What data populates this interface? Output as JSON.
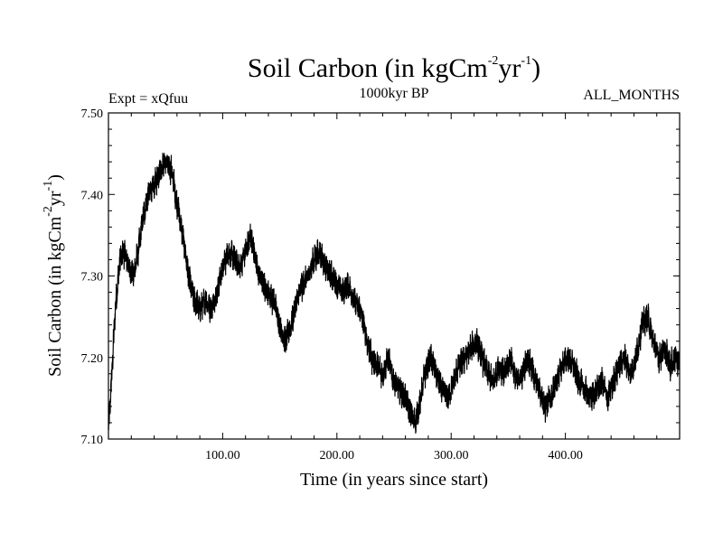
{
  "chart_data": {
    "type": "line",
    "title": {
      "prefix": "Soil Carbon (in kgCm",
      "sup1": "-2",
      "mid": "yr",
      "sup2": "-1",
      "suffix": ")"
    },
    "subtitle_left": "Expt = xQfuu",
    "subtitle_center": "1000kyr BP",
    "subtitle_right": "ALL_MONTHS",
    "xlabel": "Time (in years since start)",
    "ylabel": {
      "prefix": "Soil Carbon (in kgCm",
      "sup1": "-2",
      "mid": "yr",
      "sup2": "-1",
      "suffix": ")"
    },
    "xlim": [
      0,
      500
    ],
    "ylim": [
      7.1,
      7.5
    ],
    "x_ticks": [
      100,
      200,
      300,
      400
    ],
    "x_tick_labels": [
      "100.00",
      "200.00",
      "300.00",
      "400.00"
    ],
    "y_ticks": [
      7.1,
      7.2,
      7.3,
      7.4,
      7.5
    ],
    "y_tick_labels": [
      "7.10",
      "7.20",
      "7.30",
      "7.40",
      "7.50"
    ],
    "series": [
      {
        "name": "Soil Carbon",
        "color": "#000000",
        "x": [
          0,
          3,
          6,
          10,
          14,
          18,
          22,
          26,
          30,
          35,
          40,
          45,
          50,
          55,
          60,
          65,
          70,
          75,
          80,
          85,
          90,
          95,
          100,
          105,
          110,
          115,
          120,
          125,
          130,
          135,
          140,
          145,
          150,
          155,
          160,
          165,
          170,
          175,
          180,
          185,
          190,
          195,
          200,
          205,
          210,
          215,
          220,
          225,
          230,
          235,
          240,
          245,
          250,
          255,
          260,
          265,
          268,
          272,
          277,
          282,
          287,
          292,
          297,
          302,
          307,
          312,
          317,
          322,
          327,
          332,
          337,
          342,
          347,
          352,
          357,
          362,
          367,
          372,
          377,
          382,
          387,
          392,
          397,
          402,
          407,
          412,
          417,
          422,
          427,
          432,
          437,
          442,
          447,
          452,
          457,
          462,
          467,
          472,
          477,
          482,
          487,
          492,
          497,
          500
        ],
        "values": [
          7.11,
          7.18,
          7.26,
          7.32,
          7.33,
          7.31,
          7.3,
          7.33,
          7.37,
          7.4,
          7.41,
          7.43,
          7.44,
          7.43,
          7.39,
          7.35,
          7.3,
          7.27,
          7.26,
          7.27,
          7.26,
          7.28,
          7.31,
          7.33,
          7.32,
          7.31,
          7.33,
          7.35,
          7.31,
          7.29,
          7.28,
          7.27,
          7.24,
          7.22,
          7.24,
          7.27,
          7.29,
          7.3,
          7.32,
          7.33,
          7.31,
          7.3,
          7.29,
          7.28,
          7.29,
          7.27,
          7.26,
          7.23,
          7.2,
          7.19,
          7.18,
          7.2,
          7.17,
          7.16,
          7.15,
          7.13,
          7.12,
          7.14,
          7.18,
          7.2,
          7.18,
          7.16,
          7.15,
          7.17,
          7.19,
          7.2,
          7.21,
          7.22,
          7.2,
          7.18,
          7.17,
          7.19,
          7.18,
          7.2,
          7.17,
          7.18,
          7.2,
          7.18,
          7.16,
          7.14,
          7.15,
          7.17,
          7.19,
          7.2,
          7.19,
          7.17,
          7.16,
          7.15,
          7.16,
          7.17,
          7.15,
          7.17,
          7.19,
          7.2,
          7.18,
          7.2,
          7.24,
          7.25,
          7.22,
          7.2,
          7.21,
          7.19,
          7.2,
          7.19
        ]
      }
    ]
  }
}
